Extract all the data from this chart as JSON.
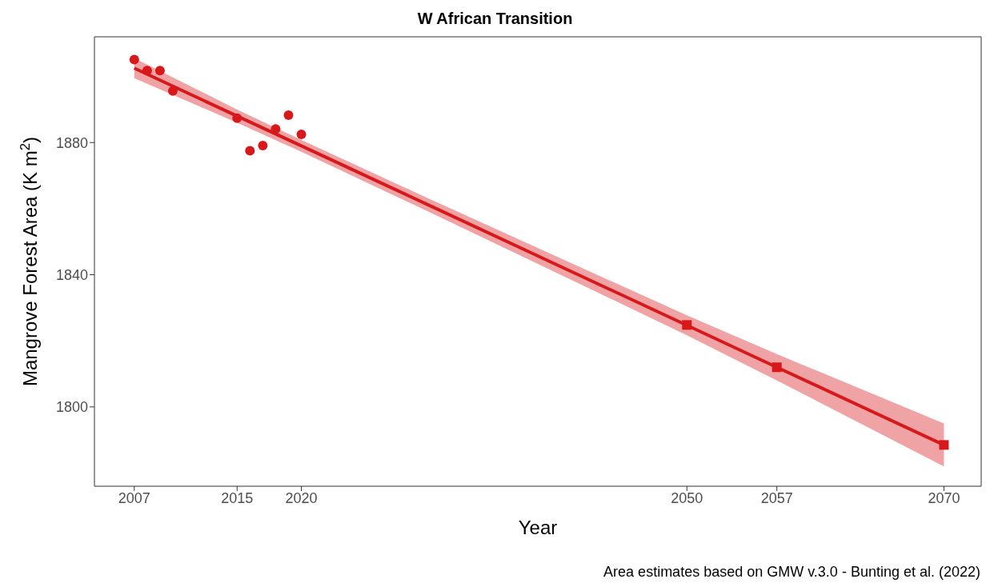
{
  "chart_data": {
    "type": "scatter",
    "title": "W African Transition",
    "xlabel": "Year",
    "ylabel": "Mangrove Forest Area (K m$^{2}$)",
    "annotations": [
      "Area estimates based on GMW v.3.0 - Bunting et al. (2022)"
    ],
    "xlim": [
      2003.9,
      2072.9
    ],
    "xticks": [
      2007,
      2015,
      2020,
      2050,
      2057,
      2070
    ],
    "ylim": [
      1776,
      1912
    ],
    "yticks": [
      1800,
      1840,
      1880
    ],
    "grid": false,
    "legend": false,
    "series": [
      {
        "type": "line",
        "marker": "none",
        "line_style": "solid",
        "color": "#d7191c",
        "x": [
          2007,
          2015,
          2020,
          2030,
          2040,
          2050,
          2057,
          2070
        ],
        "values": [
          1902.5,
          1888.0,
          1879.0,
          1860.9,
          1842.8,
          1824.7,
          1812.0,
          1788.5
        ],
        "lower": [
          1899.5,
          1886.0,
          1877.2,
          1858.9,
          1840.3,
          1821.7,
          1808.0,
          1782.0
        ],
        "upper": [
          1905.5,
          1890.0,
          1880.8,
          1862.9,
          1845.3,
          1827.7,
          1816.0,
          1795.0
        ]
      },
      {
        "marker": "circle",
        "color": "#d7191c",
        "x": [
          2007,
          2008,
          2009,
          2010,
          2015,
          2016,
          2017,
          2018,
          2019,
          2020
        ],
        "values": [
          1905.1,
          1901.8,
          1901.8,
          1895.6,
          1887.4,
          1877.5,
          1879.1,
          1884.1,
          1888.3,
          1882.5
        ]
      },
      {
        "marker": "square",
        "color": "#d7191c",
        "x": [
          2050,
          2057,
          2070
        ],
        "values": [
          1824.8,
          1812.0,
          1788.5
        ]
      }
    ]
  }
}
